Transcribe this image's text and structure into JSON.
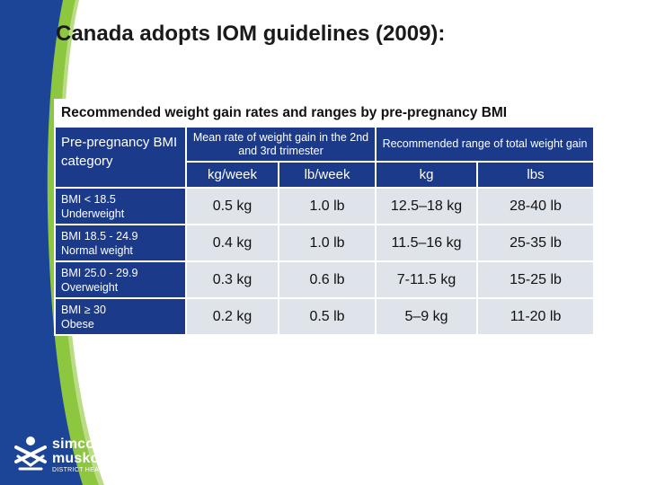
{
  "slide": {
    "title": "Canada adopts IOM guidelines (2009):"
  },
  "table": {
    "caption": "Recommended weight gain rates and ranges by pre-pregnancy BMI",
    "category_header": "Pre-pregnancy BMI category",
    "group_headers": [
      "Mean rate of weight gain in the 2nd and 3rd trimester",
      "Recommended range of total weight gain"
    ],
    "unit_headers": [
      "kg/week",
      "lb/week",
      "kg",
      "lbs"
    ],
    "rows": [
      {
        "category": "BMI < 18.5",
        "label": "Underweight",
        "kg_week": "0.5 kg",
        "lb_week": "1.0 lb",
        "kg_range": "12.5–18 kg",
        "lb_range": "28-40 lb"
      },
      {
        "category": "BMI 18.5 - 24.9",
        "label": "Normal weight",
        "kg_week": "0.4 kg",
        "lb_week": "1.0 lb",
        "kg_range": "11.5–16 kg",
        "lb_range": "25-35 lb"
      },
      {
        "category": "BMI 25.0 - 29.9",
        "label": "Overweight",
        "kg_week": "0.3 kg",
        "lb_week": "0.6 lb",
        "kg_range": "7-11.5 kg",
        "lb_range": "15-25 lb"
      },
      {
        "category": "BMI ≥ 30",
        "label": "Obese",
        "kg_week": "0.2 kg",
        "lb_week": "0.5 lb",
        "kg_range": "5–9 kg",
        "lb_range": "11-20 lb"
      }
    ]
  },
  "logo": {
    "line1": "simcoe",
    "line2": "muskoka",
    "line3": "DISTRICT HEALTH UNIT"
  },
  "colors": {
    "band_blue": "#1d4597",
    "band_green": "#8dc63f",
    "header_blue": "#1b3a8a",
    "cell_gray": "#dfe3ea"
  }
}
